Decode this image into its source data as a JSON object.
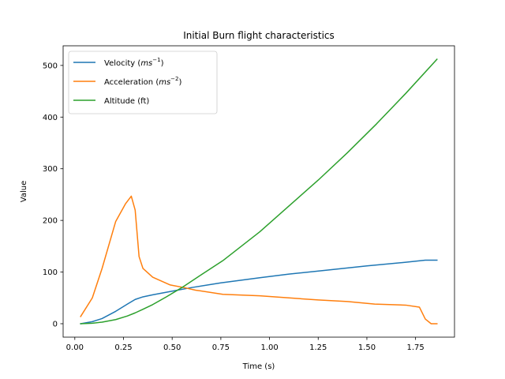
{
  "chart_data": {
    "type": "line",
    "title": "Initial Burn flight characteristics",
    "xlabel": "Time (s)",
    "ylabel": "Value",
    "xlim": [
      -0.06,
      1.95
    ],
    "ylim": [
      -26,
      538
    ],
    "xticks": [
      0.0,
      0.25,
      0.5,
      0.75,
      1.0,
      1.25,
      1.5,
      1.75
    ],
    "xtick_labels": [
      "0.00",
      "0.25",
      "0.50",
      "0.75",
      "1.00",
      "1.25",
      "1.50",
      "1.75"
    ],
    "yticks": [
      0,
      100,
      200,
      300,
      400,
      500
    ],
    "ytick_labels": [
      "0",
      "100",
      "200",
      "300",
      "400",
      "500"
    ],
    "grid": false,
    "legend_position": "upper-left",
    "series": [
      {
        "name": "Velocity",
        "name_unit": "ms",
        "name_exp": "−1",
        "color": "#1f77b4",
        "x": [
          0.03,
          0.09,
          0.14,
          0.21,
          0.27,
          0.31,
          0.35,
          0.4,
          0.5,
          0.6,
          0.75,
          0.95,
          1.1,
          1.3,
          1.5,
          1.7,
          1.8,
          1.86
        ],
        "y": [
          0,
          4,
          10,
          24,
          38,
          47,
          52,
          56,
          63,
          70,
          79,
          89,
          96,
          104,
          112,
          119,
          123,
          123
        ]
      },
      {
        "name": "Acceleration",
        "name_unit": "ms",
        "name_exp": "−2",
        "color": "#ff7f0e",
        "x": [
          0.03,
          0.09,
          0.14,
          0.21,
          0.26,
          0.29,
          0.31,
          0.33,
          0.35,
          0.4,
          0.49,
          0.56,
          0.62,
          0.76,
          0.95,
          1.1,
          1.25,
          1.4,
          1.54,
          1.7,
          1.77,
          1.8,
          1.83,
          1.86
        ],
        "y": [
          14,
          50,
          107,
          198,
          232,
          247,
          220,
          130,
          107,
          90,
          75,
          70,
          65,
          57,
          54,
          50,
          46,
          43,
          38,
          36,
          32,
          9,
          0,
          0
        ]
      },
      {
        "name": "Altitude (ft)",
        "name_unit": "",
        "name_exp": "",
        "color": "#2ca02c",
        "x": [
          0.03,
          0.09,
          0.14,
          0.21,
          0.27,
          0.31,
          0.35,
          0.4,
          0.47,
          0.55,
          0.65,
          0.76,
          0.95,
          1.1,
          1.25,
          1.4,
          1.55,
          1.7,
          1.86
        ],
        "y": [
          0,
          1,
          3,
          8,
          15,
          21,
          28,
          37,
          52,
          70,
          95,
          122,
          178,
          228,
          278,
          331,
          387,
          446,
          512
        ]
      }
    ]
  }
}
